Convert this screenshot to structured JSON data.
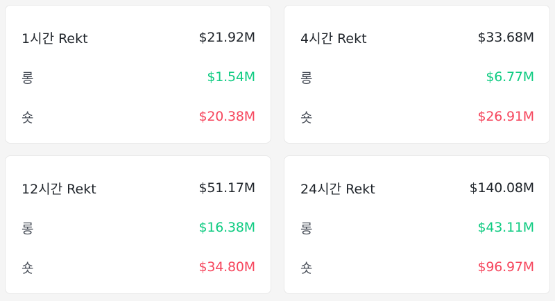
{
  "colors": {
    "long": "#0ecb81",
    "short": "#f6465d",
    "text": "#1e2329"
  },
  "cards": [
    {
      "title": "1시간 Rekt",
      "total": "$21.92M",
      "long_label": "롱",
      "long": "$1.54M",
      "short_label": "숏",
      "short": "$20.38M"
    },
    {
      "title": "4시간 Rekt",
      "total": "$33.68M",
      "long_label": "롱",
      "long": "$6.77M",
      "short_label": "숏",
      "short": "$26.91M"
    },
    {
      "title": "12시간 Rekt",
      "total": "$51.17M",
      "long_label": "롱",
      "long": "$16.38M",
      "short_label": "숏",
      "short": "$34.80M"
    },
    {
      "title": "24시간 Rekt",
      "total": "$140.08M",
      "long_label": "롱",
      "long": "$43.11M",
      "short_label": "숏",
      "short": "$96.97M"
    }
  ]
}
